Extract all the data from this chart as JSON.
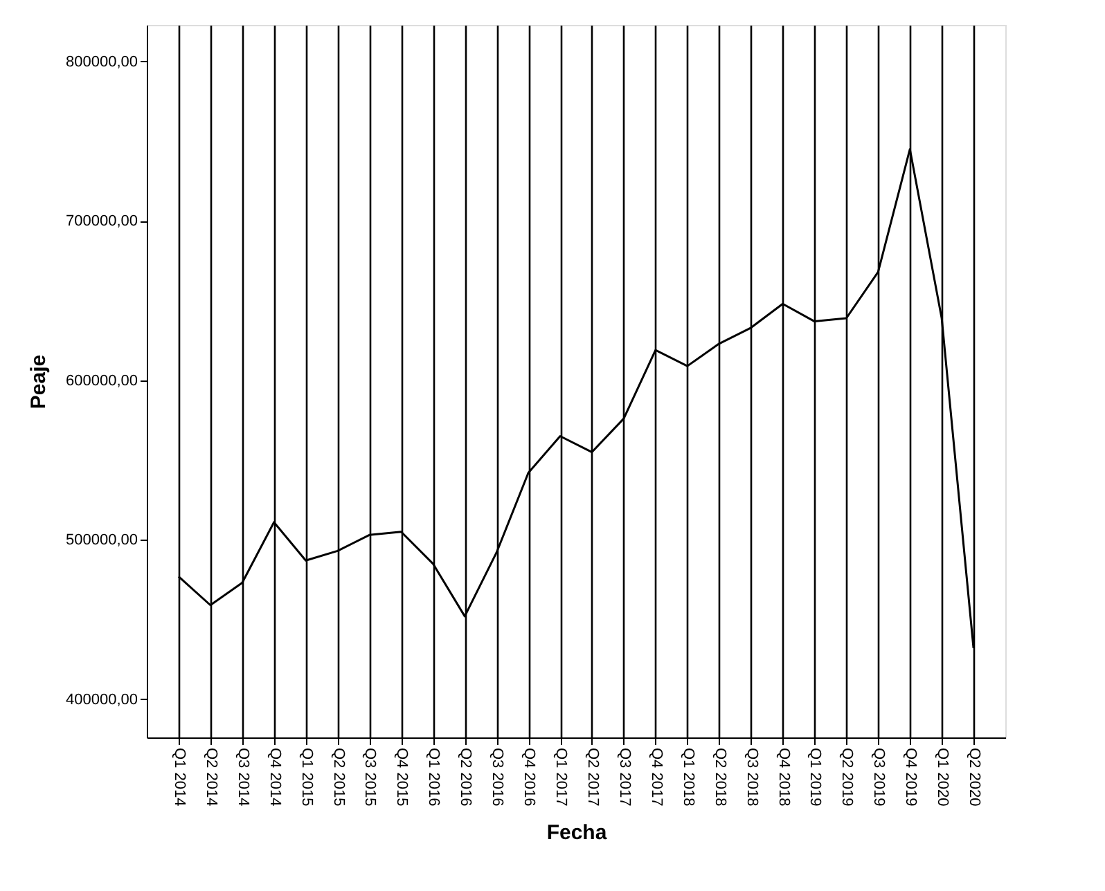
{
  "chart_data": {
    "type": "line",
    "xlabel": "Fecha",
    "ylabel": "Peaje",
    "categories": [
      "Q1 2014",
      "Q2 2014",
      "Q3 2014",
      "Q4 2014",
      "Q1 2015",
      "Q2 2015",
      "Q3 2015",
      "Q4 2015",
      "Q1 2016",
      "Q2 2016",
      "Q3 2016",
      "Q4 2016",
      "Q1 2017",
      "Q2 2017",
      "Q3 2017",
      "Q4 2017",
      "Q1 2018",
      "Q2 2018",
      "Q3 2018",
      "Q4 2018",
      "Q1 2019",
      "Q2 2019",
      "Q3 2019",
      "Q4 2019",
      "Q1 2020",
      "Q2 2020"
    ],
    "series": [
      {
        "color": "#000000",
        "values": [
          477000,
          459000,
          473000,
          511000,
          487000,
          493000,
          503000,
          505000,
          485000,
          452000,
          492000,
          542000,
          565000,
          555000,
          576000,
          619000,
          609000,
          623000,
          633000,
          648000,
          637000,
          639000,
          668000,
          745000,
          639000,
          432000
        ]
      }
    ],
    "ylim": [
      376000,
      823000
    ],
    "yticks": [
      {
        "value": 400000,
        "label": "400000,00"
      },
      {
        "value": 500000,
        "label": "500000,00"
      },
      {
        "value": 600000,
        "label": "600000,00"
      },
      {
        "value": 700000,
        "label": "700000,00"
      },
      {
        "value": 800000,
        "label": "800000,00"
      }
    ],
    "grid": "x",
    "marker": "none",
    "line_style": "solid",
    "legend": false
  }
}
